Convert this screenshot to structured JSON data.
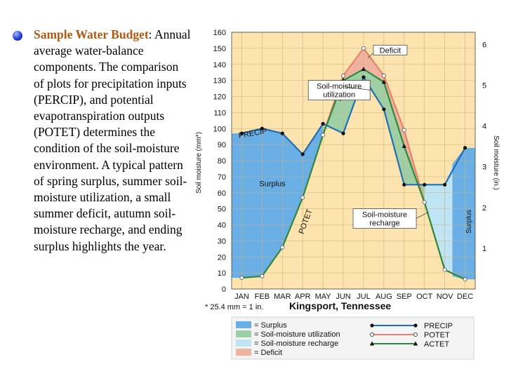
{
  "bullet": {
    "title": "Sample Water Budget",
    "title_suffix": ":",
    "body": "Annual average water-balance components. The comparison of plots for precipitation inputs (PERCIP), and potential evapotranspiration outputs (POTET) determines the condition of the soil-moisture environment.  A typical pattern of spring surplus, summer soil-moisture utilization, a small summer deficit, autumn soil-moisture recharge, and ending surplus highlights the year."
  },
  "chart_data": {
    "type": "line",
    "title": "Kingsport, Tennessee",
    "footnote": "* 25.4 mm = 1 in.",
    "ylabel_left": "Soil moisture (mm*)",
    "ylabel_right": "Soil moisture (in.)",
    "categories": [
      "JAN",
      "FEB",
      "MAR",
      "APR",
      "MAY",
      "JUN",
      "JUL",
      "AUG",
      "SEP",
      "OCT",
      "NOV",
      "DEC"
    ],
    "ylim": [
      0,
      160
    ],
    "yticks_left": [
      0,
      10,
      20,
      30,
      40,
      50,
      60,
      70,
      80,
      90,
      100,
      110,
      120,
      130,
      140,
      150,
      160
    ],
    "yticks_right": [
      1,
      2,
      3,
      4,
      5,
      6
    ],
    "series": [
      {
        "name": "PRECIP",
        "values": [
          97,
          100,
          97,
          84,
          103,
          97,
          132,
          112,
          65,
          65,
          65,
          88
        ],
        "color": "#1f6fb5"
      },
      {
        "name": "POTET",
        "values": [
          7,
          8,
          26,
          57,
          96,
          133,
          150,
          133,
          99,
          54,
          12,
          6
        ],
        "color": "#e8836b"
      },
      {
        "name": "ACTET",
        "values": [
          7,
          8,
          26,
          57,
          96,
          130,
          137,
          129,
          89,
          54,
          12,
          6
        ],
        "color": "#2b8a3e"
      }
    ],
    "annotations": [
      "PRECIP",
      "POTET",
      "ACTET",
      "Deficit",
      "Soil-moisture utilization",
      "Surplus",
      "Soil-moisture recharge",
      "Surplus"
    ],
    "legend": {
      "position": "bottom",
      "fills": [
        {
          "label": "= Surplus",
          "color": "#6aaee6"
        },
        {
          "label": "= Soil-moisture utilization",
          "color": "#9fd0a5"
        },
        {
          "label": "= Soil-moisture recharge",
          "color": "#bfe4f4"
        },
        {
          "label": "= Deficit",
          "color": "#f0b3a0"
        }
      ],
      "lines": [
        {
          "label": "PRECIP",
          "color": "#1f6fb5",
          "marker": "circle-filled"
        },
        {
          "label": "POTET",
          "color": "#e8836b",
          "marker": "circle-open"
        },
        {
          "label": "ACTET",
          "color": "#2b8a3e",
          "marker": "triangle"
        }
      ]
    },
    "colors": {
      "background": "#fde4ae",
      "surplus": "#6aaee6",
      "utilization": "#9fd0a5",
      "recharge": "#bfe4f4",
      "deficit": "#f0b3a0"
    }
  }
}
